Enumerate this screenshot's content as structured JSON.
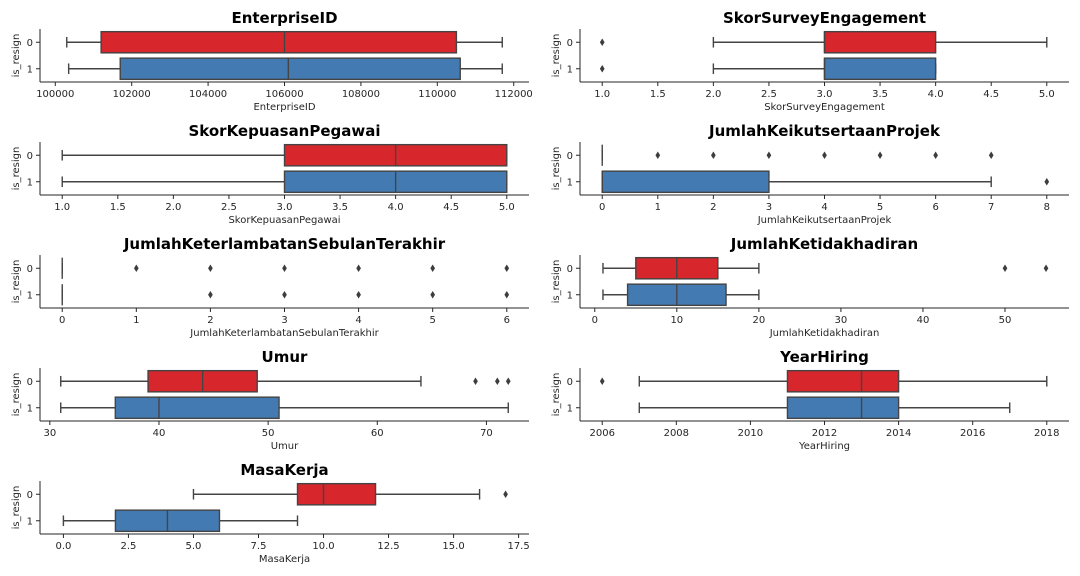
{
  "colors": {
    "class_0": "#d7262c",
    "class_1": "#437ab2",
    "line": "#444444"
  },
  "chart_data": [
    {
      "type": "boxplot",
      "title": "EnterpriseID",
      "xlabel": "EnterpriseID",
      "ylabel": "is_resign",
      "categories": [
        "0",
        "1"
      ],
      "xlim": [
        99600,
        112400
      ],
      "xticks": [
        100000,
        102000,
        104000,
        106000,
        108000,
        110000,
        112000
      ],
      "xtick_labels": [
        "100000",
        "102000",
        "104000",
        "106000",
        "108000",
        "110000",
        "112000"
      ],
      "series": [
        {
          "name": "0",
          "whisker_low": 100300,
          "q1": 101200,
          "median": 106000,
          "q3": 110500,
          "whisker_high": 111700,
          "outliers": []
        },
        {
          "name": "1",
          "whisker_low": 100350,
          "q1": 101700,
          "median": 106100,
          "q3": 110600,
          "whisker_high": 111700,
          "outliers": []
        }
      ]
    },
    {
      "type": "boxplot",
      "title": "SkorSurveyEngagement",
      "xlabel": "SkorSurveyEngagement",
      "ylabel": "is_resign",
      "categories": [
        "0",
        "1"
      ],
      "xlim": [
        0.8,
        5.2
      ],
      "xticks": [
        1,
        1.5,
        2,
        2.5,
        3,
        3.5,
        4,
        4.5,
        5
      ],
      "xtick_labels": [
        "1.0",
        "1.5",
        "2.0",
        "2.5",
        "3.0",
        "3.5",
        "4.0",
        "4.5",
        "5.0"
      ],
      "series": [
        {
          "name": "0",
          "whisker_low": 2,
          "q1": 3,
          "median": 3,
          "q3": 4,
          "whisker_high": 5,
          "outliers": [
            1
          ]
        },
        {
          "name": "1",
          "whisker_low": 2,
          "q1": 3,
          "median": 3,
          "q3": 4,
          "whisker_high": 4,
          "outliers": [
            1
          ]
        }
      ]
    },
    {
      "type": "boxplot",
      "title": "SkorKepuasanPegawai",
      "xlabel": "SkorKepuasanPegawai",
      "ylabel": "is_resign",
      "categories": [
        "0",
        "1"
      ],
      "xlim": [
        0.8,
        5.2
      ],
      "xticks": [
        1,
        1.5,
        2,
        2.5,
        3,
        3.5,
        4,
        4.5,
        5
      ],
      "xtick_labels": [
        "1.0",
        "1.5",
        "2.0",
        "2.5",
        "3.0",
        "3.5",
        "4.0",
        "4.5",
        "5.0"
      ],
      "series": [
        {
          "name": "0",
          "whisker_low": 1,
          "q1": 3,
          "median": 4,
          "q3": 5,
          "whisker_high": 5,
          "outliers": []
        },
        {
          "name": "1",
          "whisker_low": 1,
          "q1": 3,
          "median": 4,
          "q3": 5,
          "whisker_high": 5,
          "outliers": []
        }
      ]
    },
    {
      "type": "boxplot",
      "title": "JumlahKeikutsertaanProjek",
      "xlabel": "JumlahKeikutsertaanProjek",
      "ylabel": "is_resign",
      "categories": [
        "0",
        "1"
      ],
      "xlim": [
        -0.4,
        8.4
      ],
      "xticks": [
        0,
        1,
        2,
        3,
        4,
        5,
        6,
        7,
        8
      ],
      "xtick_labels": [
        "0",
        "1",
        "2",
        "3",
        "4",
        "5",
        "6",
        "7",
        "8"
      ],
      "series": [
        {
          "name": "0",
          "whisker_low": 0,
          "q1": 0,
          "median": 0,
          "q3": 0,
          "whisker_high": 0,
          "outliers": [
            1,
            2,
            3,
            4,
            5,
            6,
            7
          ]
        },
        {
          "name": "1",
          "whisker_low": 0,
          "q1": 0,
          "median": 0,
          "q3": 3,
          "whisker_high": 7,
          "outliers": [
            8
          ]
        }
      ]
    },
    {
      "type": "boxplot",
      "title": "JumlahKeterlambatanSebulanTerakhir",
      "xlabel": "JumlahKeterlambatanSebulanTerakhir",
      "ylabel": "is_resign",
      "categories": [
        "0",
        "1"
      ],
      "xlim": [
        -0.3,
        6.3
      ],
      "xticks": [
        0,
        1,
        2,
        3,
        4,
        5,
        6
      ],
      "xtick_labels": [
        "0",
        "1",
        "2",
        "3",
        "4",
        "5",
        "6"
      ],
      "series": [
        {
          "name": "0",
          "whisker_low": 0,
          "q1": 0,
          "median": 0,
          "q3": 0,
          "whisker_high": 0,
          "outliers": [
            1,
            2,
            3,
            4,
            5,
            6
          ]
        },
        {
          "name": "1",
          "whisker_low": 0,
          "q1": 0,
          "median": 0,
          "q3": 0,
          "whisker_high": 0,
          "outliers": [
            2,
            3,
            4,
            5,
            6
          ]
        }
      ]
    },
    {
      "type": "boxplot",
      "title": "JumlahKetidakhadiran",
      "xlabel": "JumlahKetidakhadiran",
      "ylabel": "is_resign",
      "categories": [
        "0",
        "1"
      ],
      "xlim": [
        -1.8,
        57.8
      ],
      "xticks": [
        0,
        10,
        20,
        30,
        40,
        50
      ],
      "xtick_labels": [
        "0",
        "10",
        "20",
        "30",
        "40",
        "50"
      ],
      "series": [
        {
          "name": "0",
          "whisker_low": 1,
          "q1": 5,
          "median": 10,
          "q3": 15,
          "whisker_high": 20,
          "outliers": [
            50,
            55
          ]
        },
        {
          "name": "1",
          "whisker_low": 1,
          "q1": 4,
          "median": 10,
          "q3": 16,
          "whisker_high": 20,
          "outliers": []
        }
      ]
    },
    {
      "type": "boxplot",
      "title": "Umur",
      "xlabel": "Umur",
      "ylabel": "is_resign",
      "categories": [
        "0",
        "1"
      ],
      "xlim": [
        29.1,
        73.9
      ],
      "xticks": [
        30,
        40,
        50,
        60,
        70
      ],
      "xtick_labels": [
        "30",
        "40",
        "50",
        "60",
        "70"
      ],
      "series": [
        {
          "name": "0",
          "whisker_low": 31,
          "q1": 39,
          "median": 44,
          "q3": 49,
          "whisker_high": 64,
          "outliers": [
            69,
            71,
            72
          ]
        },
        {
          "name": "1",
          "whisker_low": 31,
          "q1": 36,
          "median": 40,
          "q3": 51,
          "whisker_high": 72,
          "outliers": []
        }
      ]
    },
    {
      "type": "boxplot",
      "title": "YearHiring",
      "xlabel": "YearHiring",
      "ylabel": "is_resign",
      "categories": [
        "0",
        "1"
      ],
      "xlim": [
        2005.4,
        2018.6
      ],
      "xticks": [
        2006,
        2008,
        2010,
        2012,
        2014,
        2016,
        2018
      ],
      "xtick_labels": [
        "2006",
        "2008",
        "2010",
        "2012",
        "2014",
        "2016",
        "2018"
      ],
      "series": [
        {
          "name": "0",
          "whisker_low": 2007,
          "q1": 2011,
          "median": 2013,
          "q3": 2014,
          "whisker_high": 2018,
          "outliers": [
            2006
          ]
        },
        {
          "name": "1",
          "whisker_low": 2007,
          "q1": 2011,
          "median": 2013,
          "q3": 2014,
          "whisker_high": 2017,
          "outliers": []
        }
      ]
    },
    {
      "type": "boxplot",
      "title": "MasaKerja",
      "xlabel": "MasaKerja",
      "ylabel": "is_resign",
      "categories": [
        "0",
        "1"
      ],
      "xlim": [
        -0.9,
        17.9
      ],
      "xticks": [
        0,
        2.5,
        5,
        7.5,
        10,
        12.5,
        15,
        17.5
      ],
      "xtick_labels": [
        "0.0",
        "2.5",
        "5.0",
        "7.5",
        "10.0",
        "12.5",
        "15.0",
        "17.5"
      ],
      "series": [
        {
          "name": "0",
          "whisker_low": 5,
          "q1": 9,
          "median": 10,
          "q3": 12,
          "whisker_high": 16,
          "outliers": [
            17
          ]
        },
        {
          "name": "1",
          "whisker_low": 0,
          "q1": 2,
          "median": 4,
          "q3": 6,
          "whisker_high": 9,
          "outliers": []
        }
      ]
    }
  ]
}
